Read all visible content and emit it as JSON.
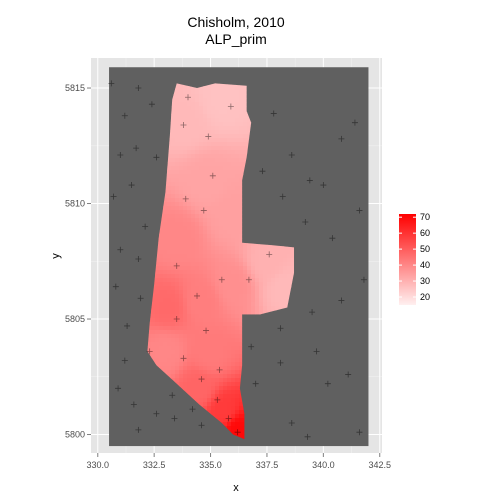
{
  "chart_data": {
    "type": "heatmap",
    "title_line1": "Chisholm, 2010",
    "title_line2": "ALP_prim",
    "xlabel": "x",
    "ylabel": "y",
    "xlim": [
      329.7,
      342.6
    ],
    "ylim": [
      5799.2,
      5816.3
    ],
    "x_ticks": [
      {
        "value": 330.0,
        "label": "330.0"
      },
      {
        "value": 332.5,
        "label": "332.5"
      },
      {
        "value": 335.0,
        "label": "335.0"
      },
      {
        "value": 337.5,
        "label": "337.5"
      },
      {
        "value": 340.0,
        "label": "340.0"
      },
      {
        "value": 342.5,
        "label": "342.5"
      }
    ],
    "y_ticks": [
      {
        "value": 5800,
        "label": "5800"
      },
      {
        "value": 5805,
        "label": "5805"
      },
      {
        "value": 5810,
        "label": "5810"
      },
      {
        "value": 5815,
        "label": "5815"
      }
    ],
    "raster_extent": {
      "x": [
        330.5,
        342.0
      ],
      "y": [
        5799.5,
        5815.9
      ]
    },
    "region_boundary": [
      [
        333.5,
        5815.2
      ],
      [
        334.4,
        5815.0
      ],
      [
        335.2,
        5815.2
      ],
      [
        336.6,
        5815.1
      ],
      [
        336.6,
        5814.0
      ],
      [
        336.8,
        5813.5
      ],
      [
        336.6,
        5812.0
      ],
      [
        336.4,
        5811.0
      ],
      [
        336.4,
        5808.3
      ],
      [
        337.7,
        5808.2
      ],
      [
        338.7,
        5808.1
      ],
      [
        338.7,
        5807.0
      ],
      [
        338.4,
        5805.5
      ],
      [
        337.2,
        5805.2
      ],
      [
        336.4,
        5805.2
      ],
      [
        336.4,
        5803.0
      ],
      [
        336.3,
        5802.0
      ],
      [
        336.5,
        5800.9
      ],
      [
        336.5,
        5799.8
      ],
      [
        336.0,
        5800.0
      ],
      [
        335.5,
        5800.5
      ],
      [
        334.5,
        5801.3
      ],
      [
        333.5,
        5802.2
      ],
      [
        332.6,
        5803.0
      ],
      [
        332.2,
        5803.6
      ],
      [
        332.3,
        5804.8
      ],
      [
        332.5,
        5806.5
      ],
      [
        332.7,
        5808.5
      ],
      [
        333.0,
        5810.5
      ],
      [
        333.2,
        5813.0
      ],
      [
        333.3,
        5814.5
      ]
    ],
    "color_scale": {
      "low_color": "#fff0f0",
      "high_color": "#ff0000",
      "min": 15,
      "max": 72,
      "legend_ticks": [
        20,
        30,
        40,
        50,
        60,
        70
      ]
    },
    "field_anchors": [
      {
        "x": 333.9,
        "y": 5813.5,
        "v": 28
      },
      {
        "x": 335.5,
        "y": 5814.5,
        "v": 26
      },
      {
        "x": 334.8,
        "y": 5811.0,
        "v": 33
      },
      {
        "x": 336.0,
        "y": 5809.5,
        "v": 34
      },
      {
        "x": 333.5,
        "y": 5808.5,
        "v": 40
      },
      {
        "x": 337.5,
        "y": 5807.5,
        "v": 30
      },
      {
        "x": 338.3,
        "y": 5806.3,
        "v": 28
      },
      {
        "x": 336.0,
        "y": 5806.5,
        "v": 38
      },
      {
        "x": 333.1,
        "y": 5805.5,
        "v": 47
      },
      {
        "x": 334.6,
        "y": 5805.8,
        "v": 42
      },
      {
        "x": 333.0,
        "y": 5803.6,
        "v": 40
      },
      {
        "x": 335.0,
        "y": 5803.5,
        "v": 43
      },
      {
        "x": 334.5,
        "y": 5802.0,
        "v": 48
      },
      {
        "x": 335.6,
        "y": 5801.0,
        "v": 58
      },
      {
        "x": 336.2,
        "y": 5800.2,
        "v": 70
      }
    ],
    "points": [
      [
        330.6,
        5815.2
      ],
      [
        331.2,
        5813.8
      ],
      [
        331.8,
        5815.0
      ],
      [
        332.4,
        5814.3
      ],
      [
        331.0,
        5812.1
      ],
      [
        331.7,
        5812.4
      ],
      [
        332.6,
        5812.0
      ],
      [
        330.7,
        5810.3
      ],
      [
        331.5,
        5810.8
      ],
      [
        332.1,
        5809.0
      ],
      [
        331.0,
        5808.0
      ],
      [
        331.8,
        5807.6
      ],
      [
        330.8,
        5806.4
      ],
      [
        331.9,
        5805.9
      ],
      [
        331.3,
        5804.7
      ],
      [
        332.3,
        5803.6
      ],
      [
        331.2,
        5803.2
      ],
      [
        330.9,
        5802.0
      ],
      [
        331.6,
        5801.3
      ],
      [
        332.6,
        5800.9
      ],
      [
        331.8,
        5800.2
      ],
      [
        333.4,
        5800.7
      ],
      [
        333.3,
        5801.7
      ],
      [
        334.6,
        5800.4
      ],
      [
        337.8,
        5813.9
      ],
      [
        338.6,
        5812.1
      ],
      [
        337.3,
        5811.4
      ],
      [
        339.4,
        5811.0
      ],
      [
        340.8,
        5812.8
      ],
      [
        341.4,
        5813.5
      ],
      [
        338.2,
        5810.3
      ],
      [
        339.2,
        5809.2
      ],
      [
        340.4,
        5808.5
      ],
      [
        341.6,
        5809.7
      ],
      [
        340.0,
        5810.8
      ],
      [
        338.1,
        5804.6
      ],
      [
        339.5,
        5805.3
      ],
      [
        340.8,
        5805.8
      ],
      [
        341.8,
        5806.7
      ],
      [
        339.7,
        5803.6
      ],
      [
        338.1,
        5803.1
      ],
      [
        340.2,
        5802.2
      ],
      [
        341.1,
        5802.6
      ],
      [
        338.6,
        5800.5
      ],
      [
        339.3,
        5799.9
      ],
      [
        341.6,
        5800.1
      ],
      [
        337.0,
        5802.2
      ],
      [
        336.8,
        5803.8
      ],
      [
        334.0,
        5814.6
      ],
      [
        333.8,
        5813.4
      ],
      [
        334.9,
        5812.9
      ],
      [
        335.9,
        5814.2
      ],
      [
        335.1,
        5811.2
      ],
      [
        333.9,
        5810.2
      ],
      [
        334.7,
        5809.7
      ],
      [
        333.5,
        5807.3
      ],
      [
        334.4,
        5806.0
      ],
      [
        335.5,
        5806.7
      ],
      [
        336.7,
        5806.7
      ],
      [
        337.6,
        5807.8
      ],
      [
        333.5,
        5805.0
      ],
      [
        334.8,
        5804.5
      ],
      [
        333.8,
        5803.3
      ],
      [
        335.4,
        5802.8
      ],
      [
        334.6,
        5802.4
      ],
      [
        335.3,
        5801.5
      ],
      [
        335.8,
        5800.7
      ],
      [
        336.2,
        5800.1
      ],
      [
        334.2,
        5801.1
      ]
    ],
    "legend_title": "",
    "legend_position": "right",
    "grid": true
  }
}
